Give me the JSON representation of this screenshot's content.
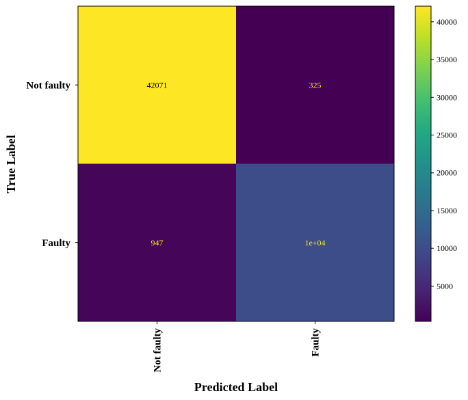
{
  "chart_data": {
    "type": "heatmap",
    "subtype": "confusion-matrix",
    "title": "",
    "xlabel": "Predicted Label",
    "ylabel": "True Label",
    "x_categories": [
      "Not faulty",
      "Faulty"
    ],
    "y_categories": [
      "Not faulty",
      "Faulty"
    ],
    "values": [
      [
        42071,
        325
      ],
      [
        947,
        10000
      ]
    ],
    "cell_labels": [
      [
        "42071",
        "325"
      ],
      [
        "947",
        "1e+04"
      ]
    ],
    "colormap": "viridis",
    "colorbar": {
      "min": 325,
      "max": 42071,
      "ticks": [
        5000,
        10000,
        15000,
        20000,
        25000,
        30000,
        35000,
        40000
      ],
      "tick_labels": [
        "5000",
        "10000",
        "15000",
        "20000",
        "25000",
        "30000",
        "35000",
        "40000"
      ]
    },
    "colors": {
      "high_text": "#000000",
      "low_text": "#fde725"
    }
  }
}
